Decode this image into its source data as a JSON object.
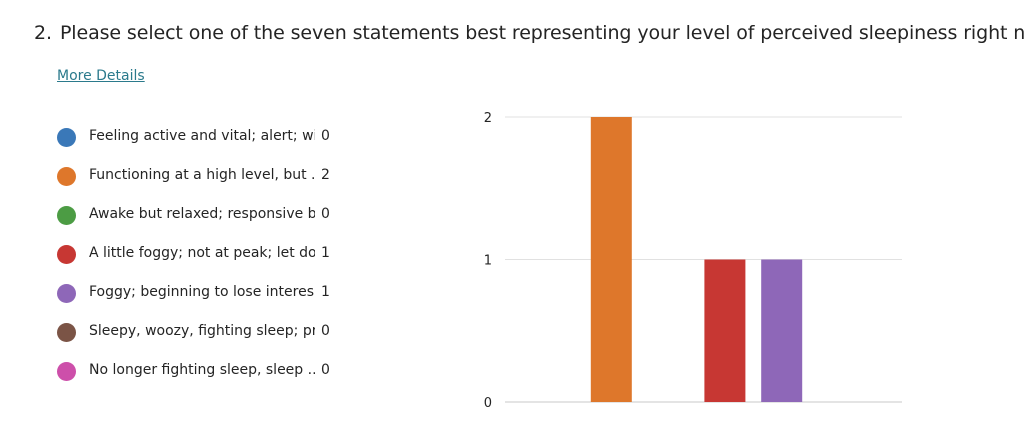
{
  "question": {
    "number": "2.",
    "text": "Please select one of the seven statements best representing your level of perceived sleepiness right now."
  },
  "more_details_label": "More Details",
  "legend": [
    {
      "label": "Feeling active and vital; alert; wi...",
      "count": "0",
      "color": "#3a78b8"
    },
    {
      "label": "Functioning at a high level, but ...",
      "count": "2",
      "color": "#de772b"
    },
    {
      "label": "Awake but relaxed; responsive b...",
      "count": "0",
      "color": "#4c9c44"
    },
    {
      "label": "A little foggy; not at peak; let do...",
      "count": "1",
      "color": "#c73733"
    },
    {
      "label": "Foggy; beginning to lose interes...",
      "count": "1",
      "color": "#8e67b8"
    },
    {
      "label": "Sleepy, woozy, fighting sleep; pr...",
      "count": "0",
      "color": "#7b5446"
    },
    {
      "label": "No longer fighting sleep, sleep ...",
      "count": "0",
      "color": "#cd4faa"
    }
  ],
  "chart_data": {
    "type": "bar",
    "categories": [
      "Feeling active and vital; alert; wi...",
      "Functioning at a high level, but ...",
      "Awake but relaxed; responsive b...",
      "A little foggy; not at peak; let do...",
      "Foggy; beginning to lose interes...",
      "Sleepy, woozy, fighting sleep; pr...",
      "No longer fighting sleep, sleep ..."
    ],
    "values": [
      0,
      2,
      0,
      1,
      1,
      0,
      0
    ],
    "colors": [
      "#3a78b8",
      "#de772b",
      "#4c9c44",
      "#c73733",
      "#8e67b8",
      "#7b5446",
      "#cd4faa"
    ],
    "ylim": [
      0,
      2
    ],
    "yticks": [
      "0",
      "1",
      "2"
    ],
    "grid": true,
    "xlabel": "",
    "ylabel": ""
  }
}
